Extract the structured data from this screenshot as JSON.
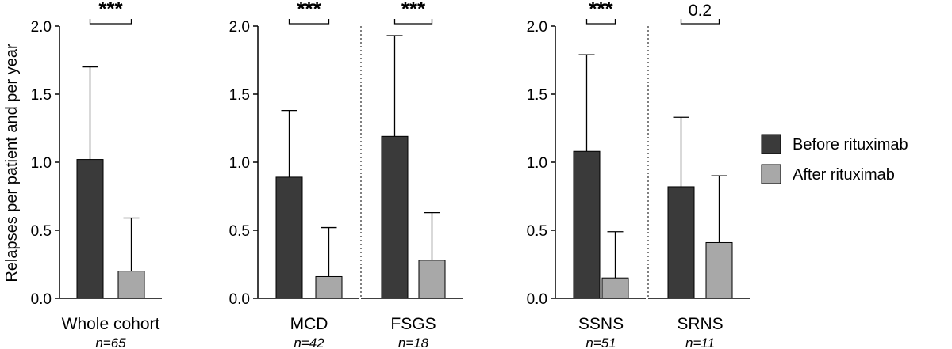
{
  "chart_data": {
    "type": "bar",
    "ylabel": "Relapses per patient and per year",
    "ylim": [
      0,
      2.0
    ],
    "yticks": [
      "0.0",
      "0.5",
      "1.0",
      "1.5",
      "2.0"
    ],
    "series_names": [
      "Before rituximab",
      "After rituximab"
    ],
    "colors": {
      "before": "#3a3a3a",
      "after": "#a8a8a8"
    },
    "legend": {
      "position": "right",
      "entries": [
        "Before rituximab",
        "After rituximab"
      ]
    },
    "panels": [
      {
        "groups": [
          {
            "label": "Whole cohort",
            "n": "n=65",
            "before": 1.02,
            "before_err": 1.7,
            "after": 0.2,
            "after_err": 0.59,
            "sig": "***"
          }
        ]
      },
      {
        "groups": [
          {
            "label": "MCD",
            "n": "n=42",
            "before": 0.89,
            "before_err": 1.38,
            "after": 0.16,
            "after_err": 0.52,
            "sig": "***"
          },
          {
            "label": "FSGS",
            "n": "n=18",
            "before": 1.19,
            "before_err": 1.93,
            "after": 0.28,
            "after_err": 0.63,
            "sig": "***"
          }
        ]
      },
      {
        "groups": [
          {
            "label": "SSNS",
            "n": "n=51",
            "before": 1.08,
            "before_err": 1.79,
            "after": 0.15,
            "after_err": 0.49,
            "sig": "***"
          },
          {
            "label": "SRNS",
            "n": "n=11",
            "before": 0.82,
            "before_err": 1.33,
            "after": 0.41,
            "after_err": 0.9,
            "sig": "0.2"
          }
        ]
      }
    ]
  }
}
